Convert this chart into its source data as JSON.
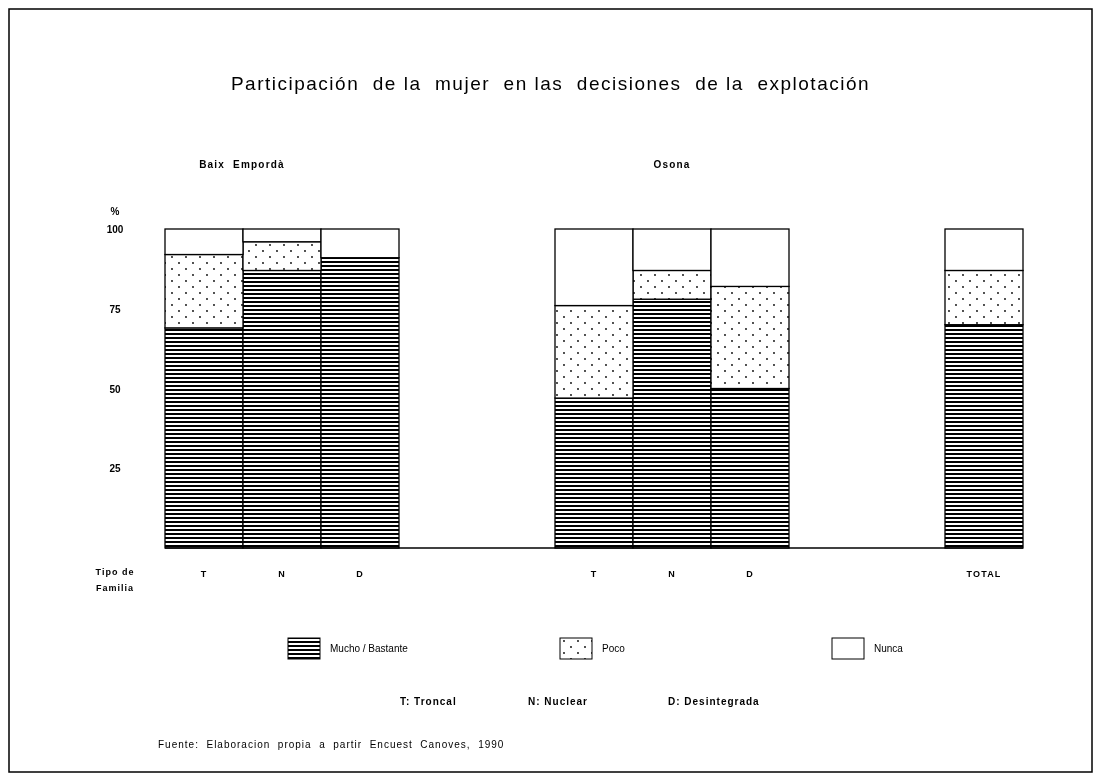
{
  "chart_data": {
    "type": "bar",
    "stacked": true,
    "title": "Participación  de la  mujer  en las  decisiones  de la  explotación",
    "ylabel": "%",
    "xlabel": "Tipo de Familia",
    "categories": [
      "T",
      "N",
      "D",
      null,
      null,
      "T",
      "N",
      "D",
      null,
      null,
      "TOTAL"
    ],
    "series": [
      {
        "name": "Mucho / Bastante",
        "color": "#000000",
        "values": [
          69,
          87,
          91,
          null,
          null,
          47,
          78,
          50,
          null,
          null,
          70
        ]
      },
      {
        "name": "Poco",
        "color": "#000000",
        "values": [
          23,
          9,
          0,
          null,
          null,
          29,
          9,
          32,
          null,
          null,
          17
        ]
      },
      {
        "name": "Nunca",
        "color": "#ffffff",
        "values": [
          8,
          4,
          9,
          null,
          null,
          24,
          13,
          18,
          null,
          null,
          13
        ]
      }
    ],
    "ylim": [
      0,
      100
    ],
    "yticks": [
      25,
      50,
      75,
      100
    ],
    "legend": "bottom",
    "grid": false,
    "annotations": [
      "Baix  Empordà",
      "Osona",
      "T: Troncal",
      "N: Nuclear",
      "D: Desintegrada",
      "Fuente:  Elaboracion  propia  a  partir  Encuest  Canoves,  1990"
    ]
  }
}
